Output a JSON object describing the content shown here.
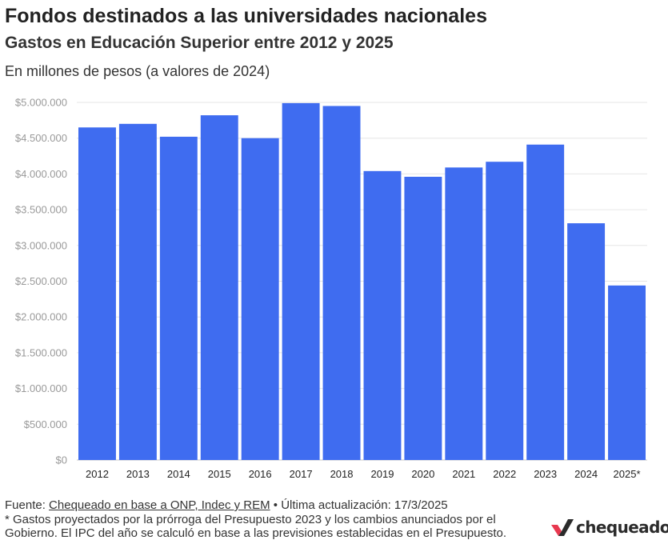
{
  "header": {
    "title": "Fondos destinados a las universidades nacionales",
    "subtitle": "Gastos en Educación Superior entre 2012 y 2025",
    "unit_note": "En millones de pesos (a valores de 2024)"
  },
  "footer": {
    "source_prefix": "Fuente: ",
    "source_link": "Chequeado en base a ONP, Indec y REM",
    "updated": " • Última actualización: 17/3/2025",
    "note": "* Gastos proyectados por la prórroga del Presupuesto 2023 y los cambios anunciados por el Gobierno. El IPC del año se calculó en base a las previsiones establecidas en el Presupuesto."
  },
  "logo": {
    "text": "chequeado",
    "accent_color": "#e8384f"
  },
  "chart_data": {
    "type": "bar",
    "title": "Fondos destinados a las universidades nacionales",
    "subtitle": "Gastos en Educación Superior entre 2012 y 2025",
    "xlabel": "",
    "ylabel": "",
    "categories": [
      "2012",
      "2013",
      "2014",
      "2015",
      "2016",
      "2017",
      "2018",
      "2019",
      "2020",
      "2021",
      "2022",
      "2023",
      "2024",
      "2025*"
    ],
    "values": [
      4650000,
      4700000,
      4520000,
      4820000,
      4500000,
      4990000,
      4950000,
      4040000,
      3960000,
      4090000,
      4170000,
      4410000,
      3310000,
      2440000
    ],
    "ylim": [
      0,
      5000000
    ],
    "yticks": [
      0,
      500000,
      1000000,
      1500000,
      2000000,
      2500000,
      3000000,
      3500000,
      4000000,
      4500000,
      5000000
    ],
    "ytick_labels": [
      "$0",
      "$500.000",
      "$1.000.000",
      "$1.500.000",
      "$2.000.000",
      "$2.500.000",
      "$3.000.000",
      "$3.500.000",
      "$4.000.000",
      "$4.500.000",
      "$5.000.000"
    ],
    "grid": true,
    "legend": "none",
    "bar_color": "#3f6cf0"
  }
}
